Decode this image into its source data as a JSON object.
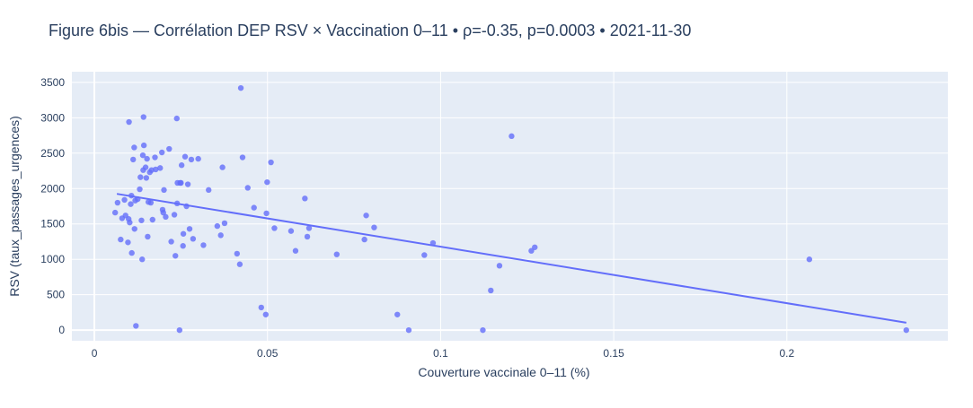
{
  "chart_data": {
    "type": "scatter",
    "title": "Figure 6bis — Corrélation DEP RSV × Vaccination 0–11 • ρ=-0.35, p=0.0003 • 2021-11-30",
    "xlabel": "Couverture vaccinale 0–11 (%)",
    "ylabel": "RSV (taux_passages_urgences)",
    "xlim": [
      -0.0065,
      0.2465
    ],
    "ylim": [
      -150,
      3650
    ],
    "xticks": [
      0,
      0.05,
      0.1,
      0.15,
      0.2
    ],
    "xtick_labels": [
      "0",
      "0.05",
      "0.1",
      "0.15",
      "0.2"
    ],
    "yticks": [
      0,
      500,
      1000,
      1500,
      2000,
      2500,
      3000,
      3500
    ],
    "ytick_labels": [
      "0",
      "500",
      "1000",
      "1500",
      "2000",
      "2500",
      "3000",
      "3500"
    ],
    "grid": true,
    "marker_color": "#636efa",
    "line_color": "#636efa",
    "plot_background": "#e5ecf6",
    "series": [
      {
        "mode": "markers",
        "points": [
          [
            0.006,
            1660
          ],
          [
            0.0067,
            1800
          ],
          [
            0.0076,
            1280
          ],
          [
            0.008,
            1580
          ],
          [
            0.0087,
            1840
          ],
          [
            0.009,
            1620
          ],
          [
            0.0097,
            1240
          ],
          [
            0.0099,
            1570
          ],
          [
            0.01,
            2940
          ],
          [
            0.0102,
            1520
          ],
          [
            0.0105,
            1780
          ],
          [
            0.0107,
            1900
          ],
          [
            0.0108,
            1090
          ],
          [
            0.0112,
            2410
          ],
          [
            0.0115,
            2580
          ],
          [
            0.0116,
            1430
          ],
          [
            0.0118,
            1830
          ],
          [
            0.012,
            60
          ],
          [
            0.0125,
            1850
          ],
          [
            0.0131,
            1990
          ],
          [
            0.0133,
            2160
          ],
          [
            0.0136,
            1550
          ],
          [
            0.0138,
            1000
          ],
          [
            0.014,
            2470
          ],
          [
            0.0141,
            2260
          ],
          [
            0.0142,
            3010
          ],
          [
            0.0143,
            2610
          ],
          [
            0.0148,
            2300
          ],
          [
            0.015,
            2150
          ],
          [
            0.0152,
            2420
          ],
          [
            0.0154,
            1320
          ],
          [
            0.0156,
            1810
          ],
          [
            0.016,
            2230
          ],
          [
            0.0163,
            1800
          ],
          [
            0.0165,
            2260
          ],
          [
            0.0168,
            1560
          ],
          [
            0.0175,
            2440
          ],
          [
            0.0177,
            2270
          ],
          [
            0.019,
            2290
          ],
          [
            0.0195,
            2510
          ],
          [
            0.0197,
            1700
          ],
          [
            0.0199,
            1660
          ],
          [
            0.0201,
            1980
          ],
          [
            0.0206,
            1600
          ],
          [
            0.0216,
            2560
          ],
          [
            0.0222,
            1250
          ],
          [
            0.0231,
            1630
          ],
          [
            0.0234,
            1050
          ],
          [
            0.0238,
            2990
          ],
          [
            0.0239,
            1790
          ],
          [
            0.024,
            2080
          ],
          [
            0.0246,
            0
          ],
          [
            0.0248,
            2080
          ],
          [
            0.025,
            2080
          ],
          [
            0.0252,
            2330
          ],
          [
            0.0256,
            1190
          ],
          [
            0.0257,
            1360
          ],
          [
            0.0262,
            2450
          ],
          [
            0.0266,
            1750
          ],
          [
            0.027,
            2060
          ],
          [
            0.0275,
            1430
          ],
          [
            0.028,
            2410
          ],
          [
            0.0285,
            1290
          ],
          [
            0.03,
            2420
          ],
          [
            0.0315,
            1200
          ],
          [
            0.033,
            1980
          ],
          [
            0.0355,
            1470
          ],
          [
            0.0365,
            1340
          ],
          [
            0.037,
            2300
          ],
          [
            0.0376,
            1510
          ],
          [
            0.0412,
            1080
          ],
          [
            0.042,
            930
          ],
          [
            0.0423,
            3420
          ],
          [
            0.0428,
            2440
          ],
          [
            0.0443,
            2010
          ],
          [
            0.0461,
            1730
          ],
          [
            0.0482,
            320
          ],
          [
            0.0495,
            220
          ],
          [
            0.0497,
            1650
          ],
          [
            0.0499,
            2090
          ],
          [
            0.051,
            2370
          ],
          [
            0.052,
            1440
          ],
          [
            0.0568,
            1400
          ],
          [
            0.0581,
            1120
          ],
          [
            0.0608,
            1860
          ],
          [
            0.0615,
            1320
          ],
          [
            0.062,
            1440
          ],
          [
            0.07,
            1070
          ],
          [
            0.078,
            1280
          ],
          [
            0.0785,
            1620
          ],
          [
            0.0808,
            1450
          ],
          [
            0.0875,
            220
          ],
          [
            0.0908,
            0
          ],
          [
            0.0953,
            1060
          ],
          [
            0.0978,
            1230
          ],
          [
            0.1122,
            0
          ],
          [
            0.1145,
            560
          ],
          [
            0.117,
            910
          ],
          [
            0.1205,
            2740
          ],
          [
            0.1262,
            1120
          ],
          [
            0.1272,
            1170
          ],
          [
            0.2065,
            1000
          ],
          [
            0.2345,
            0
          ]
        ]
      },
      {
        "mode": "lines",
        "points": [
          [
            0.0065,
            1925
          ],
          [
            0.2345,
            105
          ]
        ]
      }
    ]
  }
}
